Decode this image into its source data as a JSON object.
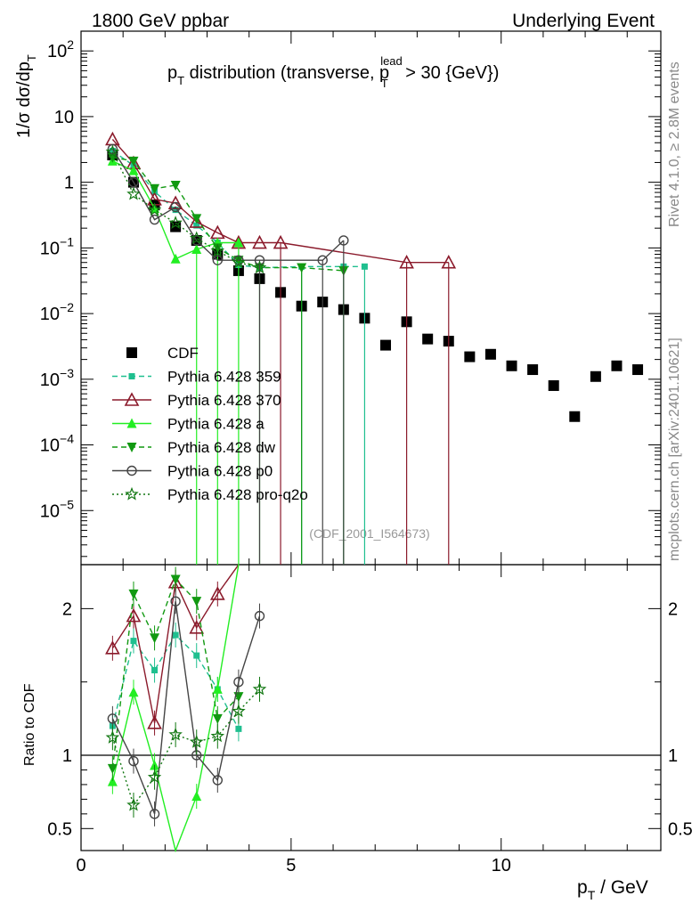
{
  "header": {
    "left": "1800 GeV ppbar",
    "right": "Underlying Event",
    "plot_title_main": "p",
    "plot_title_sub": "T",
    "plot_title_rest": " distribution (transverse, p",
    "plot_title_sup": "lead",
    "plot_title_sub2": "T",
    "plot_title_end": " > 30 {GeV})"
  },
  "side": {
    "rivet": "Rivet 4.1.0, ≥ 2.8M events",
    "mcplots": "mcplots.cern.ch [arXiv:2401.10621]"
  },
  "analysis_tag": "(CDF_2001_I564673)",
  "axes": {
    "ylabel_main": "1/σ  dσ/dp",
    "ylabel_sub": "T",
    "ratio_ylabel": "Ratio to CDF",
    "xlabel_main": "p",
    "xlabel_sub": "T",
    "xlabel_rest": " / GeV"
  },
  "colors": {
    "cdf": "#000000",
    "p359": "#1fbf8f",
    "p370": "#8b1a2b",
    "pa": "#22ee22",
    "pdw": "#119911",
    "pp0": "#444444",
    "pq2o": "#117711"
  },
  "chart_data": {
    "type": "scatter",
    "x_range": [
      0,
      13.8
    ],
    "y_range_log": [
      1.5e-06,
      200
    ],
    "ratio_range": [
      0.35,
      2.3
    ],
    "x_ticks": [
      0,
      5,
      10
    ],
    "x_tick_labels": [
      "0",
      "5",
      "10"
    ],
    "y_tick_values": [
      1e-05,
      0.0001,
      0.001,
      0.01,
      0.1,
      1,
      10,
      100
    ],
    "y_tick_labels": [
      {
        "base": "10",
        "exp": "−5"
      },
      {
        "base": "10",
        "exp": "−4"
      },
      {
        "base": "10",
        "exp": "−3"
      },
      {
        "base": "10",
        "exp": "−2"
      },
      {
        "base": "10",
        "exp": "−1"
      },
      {
        "base": "1",
        "exp": ""
      },
      {
        "base": "10",
        "exp": ""
      },
      {
        "base": "10",
        "exp": "2"
      }
    ],
    "ratio_ticks": [
      0.5,
      1,
      2
    ],
    "ratio_tick_labels": [
      "0.5",
      "1",
      "2"
    ],
    "series": [
      {
        "name": "CDF",
        "key": "cdf",
        "marker": "square",
        "line": "none",
        "x": [
          0.75,
          1.25,
          1.75,
          2.25,
          2.75,
          3.25,
          3.75,
          4.25,
          4.75,
          5.25,
          5.75,
          6.25,
          6.75,
          7.25,
          7.75,
          8.25,
          8.75,
          9.25,
          9.75,
          10.25,
          10.75,
          11.25,
          11.75,
          12.25,
          12.75,
          13.25
        ],
        "y": [
          2.6,
          1.0,
          0.45,
          0.21,
          0.13,
          0.08,
          0.045,
          0.034,
          0.021,
          0.013,
          0.015,
          0.0115,
          0.0085,
          0.0033,
          0.0075,
          0.0041,
          0.0038,
          0.0022,
          0.0024,
          0.0016,
          0.0014,
          0.0008,
          0.00027,
          0.0011,
          0.0016,
          0.0014
        ]
      },
      {
        "name": "Pythia 6.428 359",
        "key": "p359",
        "marker": "smallsquare",
        "line": "dashed",
        "x": [
          0.75,
          1.25,
          1.75,
          2.25,
          2.75,
          3.25,
          3.75,
          4.25,
          5.25,
          6.25,
          6.75
        ],
        "y": [
          3.0,
          1.8,
          0.72,
          0.38,
          0.22,
          0.12,
          0.055,
          0.05,
          0.052,
          0.052,
          0.052
        ],
        "ratio": [
          1.2,
          1.78,
          1.58,
          1.82,
          1.68,
          1.45,
          1.18,
          null,
          null,
          null,
          null
        ]
      },
      {
        "name": "Pythia 6.428 370",
        "key": "p370",
        "marker": "triangle-open",
        "line": "solid",
        "x": [
          0.75,
          1.25,
          1.75,
          2.25,
          2.75,
          3.25,
          3.75,
          4.25,
          4.75,
          7.75,
          8.75
        ],
        "y": [
          4.5,
          1.95,
          0.55,
          0.48,
          0.25,
          0.17,
          0.12,
          0.12,
          0.12,
          0.06,
          0.06
        ],
        "ratio": [
          1.73,
          1.95,
          1.22,
          2.18,
          1.87,
          2.1,
          2.5,
          null,
          null,
          null,
          null
        ]
      },
      {
        "name": "Pythia 6.428 a",
        "key": "pa",
        "marker": "triangle",
        "line": "solid",
        "x": [
          0.75,
          1.25,
          1.75,
          2.25,
          2.75,
          3.25,
          3.75
        ],
        "y": [
          2.1,
          1.5,
          0.4,
          0.068,
          0.095,
          0.12,
          0.12
        ],
        "ratio": [
          0.82,
          1.43,
          0.93,
          0.3,
          0.72,
          1.45,
          2.5
        ]
      },
      {
        "name": "Pythia 6.428 dw",
        "key": "pdw",
        "marker": "triangle-down",
        "line": "dashed",
        "x": [
          0.75,
          1.25,
          1.75,
          2.25,
          2.75,
          3.25,
          3.75,
          4.25,
          5.25,
          6.25
        ],
        "y": [
          2.4,
          2.1,
          0.8,
          0.9,
          0.28,
          0.1,
          0.065,
          0.05,
          0.05,
          0.045
        ],
        "ratio": [
          0.91,
          2.1,
          1.8,
          2.2,
          2.05,
          1.25,
          1.4,
          null,
          null,
          null
        ]
      },
      {
        "name": "Pythia 6.428 p0",
        "key": "pp0",
        "marker": "circle-open",
        "line": "solid",
        "x": [
          0.75,
          1.25,
          1.75,
          2.25,
          2.75,
          3.25,
          3.75,
          4.25,
          5.75,
          6.25
        ],
        "y": [
          3.2,
          1.0,
          0.27,
          0.42,
          0.13,
          0.065,
          0.065,
          0.065,
          0.065,
          0.13
        ],
        "ratio": [
          1.25,
          0.96,
          0.6,
          2.05,
          1.0,
          0.83,
          1.5,
          1.95,
          null,
          null
        ]
      },
      {
        "name": "Pythia 6.428 pro-q2o",
        "key": "pq2o",
        "marker": "star",
        "line": "dotted",
        "x": [
          0.75,
          1.25,
          1.75,
          2.25,
          2.75,
          3.25,
          3.75,
          4.25
        ],
        "y": [
          2.9,
          0.66,
          0.38,
          0.24,
          0.14,
          0.09,
          0.06,
          0.05
        ],
        "ratio": [
          1.12,
          0.66,
          0.85,
          1.14,
          1.09,
          1.13,
          1.3,
          1.45
        ]
      }
    ]
  }
}
